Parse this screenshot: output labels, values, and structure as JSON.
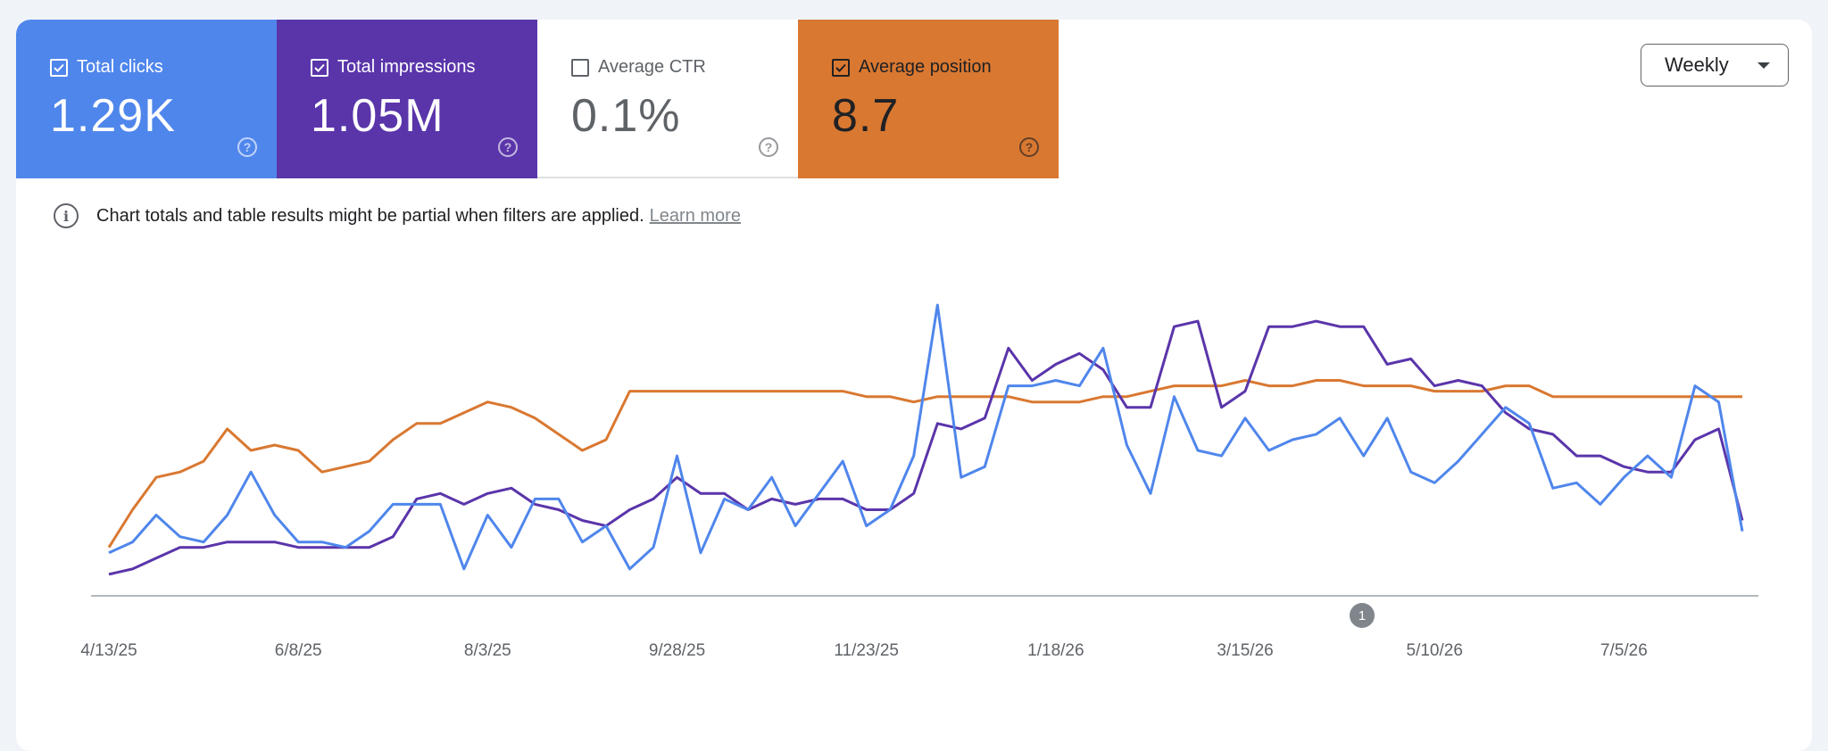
{
  "tiles": [
    {
      "label": "Total clicks",
      "value": "1.29K",
      "checked": true,
      "color": "#4f86ec"
    },
    {
      "label": "Total impressions",
      "value": "1.05M",
      "checked": true,
      "color": "#5a35aa"
    },
    {
      "label": "Average CTR",
      "value": "0.1%",
      "checked": false,
      "color": "#ffffff"
    },
    {
      "label": "Average position",
      "value": "8.7",
      "checked": true,
      "color": "#d97831"
    }
  ],
  "period_select": {
    "value": "Weekly"
  },
  "notice": {
    "text": "Chart totals and table results might be partial when filters are applied.",
    "link": "Learn more"
  },
  "icons": {
    "tile_help": "help-circle-icon",
    "notice": "info-icon",
    "dropdown": "caret-down-icon",
    "checkbox": "checkbox-icon"
  },
  "chart_data": {
    "type": "line",
    "x_tick_labels": [
      "4/13/25",
      "6/8/25",
      "8/3/25",
      "9/28/25",
      "11/23/25",
      "1/18/26",
      "3/15/26",
      "5/10/26",
      "7/5/26"
    ],
    "x_ticks_every_n_points": 8,
    "annotation": {
      "label": "1",
      "at_index": 53
    },
    "y_axis_visible": false,
    "grid": false,
    "series": [
      {
        "name": "Total clicks",
        "color": "#4f86ec",
        "values": [
          6,
          8,
          13,
          9,
          8,
          13,
          21,
          13,
          8,
          8,
          7,
          10,
          15,
          15,
          15,
          3,
          13,
          7,
          16,
          16,
          8,
          11,
          3,
          7,
          24,
          6,
          16,
          14,
          20,
          11,
          17,
          23,
          11,
          14,
          24,
          52,
          20,
          22,
          37,
          37,
          38,
          37,
          44,
          26,
          17,
          35,
          25,
          24,
          31,
          25,
          27,
          28,
          31,
          24,
          31,
          21,
          19,
          23,
          28,
          33,
          30,
          18,
          19,
          15,
          20,
          24,
          20,
          37,
          34,
          10
        ]
      },
      {
        "name": "Total impressions",
        "color": "#5a35aa",
        "values": [
          2,
          3,
          5,
          7,
          7,
          8,
          8,
          8,
          7,
          7,
          7,
          7,
          9,
          16,
          17,
          15,
          17,
          18,
          15,
          14,
          12,
          11,
          14,
          16,
          20,
          17,
          17,
          14,
          16,
          15,
          16,
          16,
          14,
          14,
          17,
          30,
          29,
          31,
          44,
          38,
          41,
          43,
          40,
          33,
          33,
          48,
          49,
          33,
          36,
          48,
          48,
          49,
          48,
          48,
          41,
          42,
          37,
          38,
          37,
          32,
          29,
          28,
          24,
          24,
          22,
          21,
          21,
          27,
          29,
          12
        ]
      },
      {
        "name": "Average position",
        "color": "#d97831",
        "values": [
          7,
          14,
          20,
          21,
          23,
          29,
          25,
          26,
          25,
          21,
          22,
          23,
          27,
          30,
          30,
          32,
          34,
          33,
          31,
          28,
          25,
          27,
          36,
          36,
          36,
          36,
          36,
          36,
          36,
          36,
          36,
          36,
          35,
          35,
          34,
          35,
          35,
          35,
          35,
          34,
          34,
          34,
          35,
          35,
          36,
          37,
          37,
          37,
          38,
          37,
          37,
          38,
          38,
          37,
          37,
          37,
          36,
          36,
          36,
          37,
          37,
          35,
          35,
          35,
          35,
          35,
          35,
          35,
          35,
          35
        ]
      }
    ]
  }
}
